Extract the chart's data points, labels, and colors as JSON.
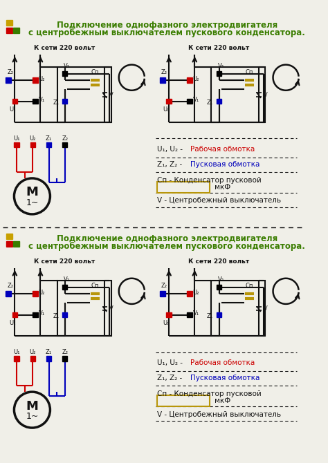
{
  "title_line1": "Подключение однофазного электродвигателя",
  "title_line2": "с центробежным выключателем пускового конденсатора.",
  "title_color": "#3a7d00",
  "bg_color": "#f0efe8",
  "red": "#cc0000",
  "blue": "#0000bb",
  "dark": "#111111",
  "black": "#000000",
  "yellow_sq": "#c8a000",
  "green_sq": "#3a7d00",
  "gold": "#b8960a",
  "net_label": "К сети 220 вольт",
  "legend_u_black": "U₁, U₂ - ",
  "legend_u_red": "Рабочая обмотка",
  "legend_z_black": "Z₁, Z₂ - ",
  "legend_z_blue": "Пусковая обмотка",
  "legend_cn": "Cп - Конденсатор пусковой",
  "legend_mkf": "мкФ",
  "legend_v": "V - Центробежный выключатель"
}
